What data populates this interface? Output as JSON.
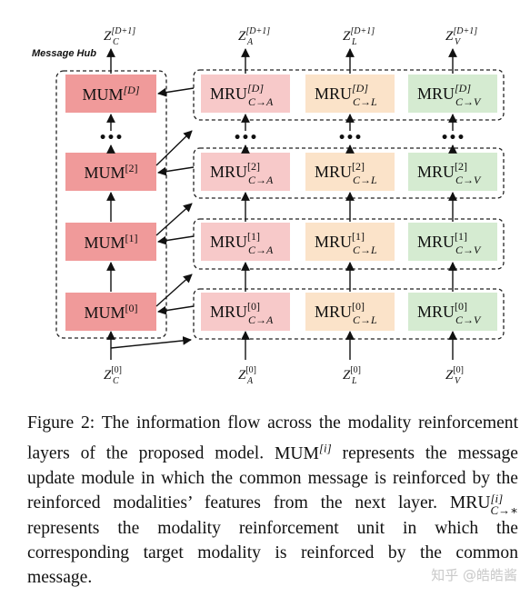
{
  "hub_label": "Message Hub",
  "mum": {
    "base": "MUM",
    "layers": [
      {
        "index": "[D]",
        "idx_italic": true
      },
      {
        "index": "[2]",
        "idx_italic": false
      },
      {
        "index": "[1]",
        "idx_italic": false
      },
      {
        "index": "[0]",
        "idx_italic": false
      }
    ]
  },
  "mru": {
    "base": "MRU",
    "targets": [
      {
        "sub": "C→A",
        "fill": "#f7c9c9"
      },
      {
        "sub": "C→L",
        "fill": "#fbe3c9"
      },
      {
        "sub": "C→V",
        "fill": "#d5ebd1"
      }
    ],
    "layer_indices": [
      "[D]",
      "[2]",
      "[1]",
      "[0]"
    ]
  },
  "ellipsis": "•••",
  "top_labels": [
    {
      "base": "Z",
      "sup": "[D+1]",
      "sub": "C"
    },
    {
      "base": "Z",
      "sup": "[D+1]",
      "sub": "A"
    },
    {
      "base": "Z",
      "sup": "[D+1]",
      "sub": "L"
    },
    {
      "base": "Z",
      "sup": "[D+1]",
      "sub": "V"
    }
  ],
  "bottom_labels": [
    {
      "base": "Z",
      "sup": "[0]",
      "sub": "C"
    },
    {
      "base": "Z",
      "sup": "[0]",
      "sub": "A"
    },
    {
      "base": "Z",
      "sup": "[0]",
      "sub": "L"
    },
    {
      "base": "Z",
      "sup": "[0]",
      "sub": "V"
    }
  ],
  "colors": {
    "mum_fill": "#f09a9a",
    "arrow": "#111111"
  },
  "caption": {
    "figure_label": "Figure 2:",
    "part1": "The information flow across the modality reinforcement layers of the proposed model.",
    "mum_base": "MUM",
    "mum_sup": "[i]",
    "part2": "represents the message update module in which the common message is reinforced by the reinforced modalities’ features from the next layer.",
    "mru_base": "MRU",
    "mru_sup": "[i]",
    "mru_sub": "C→∗",
    "part3": "represents the modality reinforcement unit in which the corresponding target modality is reinforced by the common message."
  },
  "watermark": "知乎 @皓皓酱"
}
